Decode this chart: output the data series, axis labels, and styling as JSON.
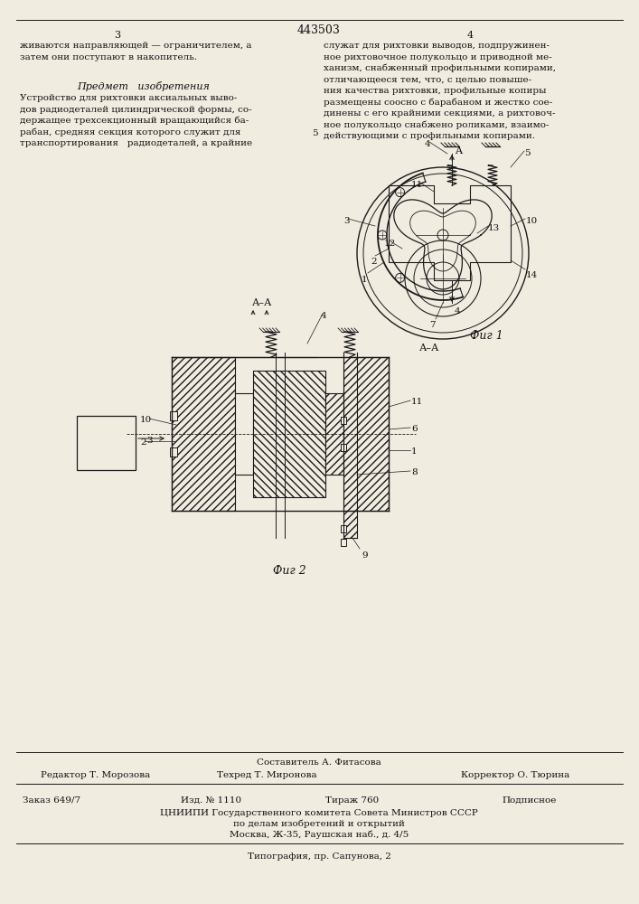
{
  "patent_number": "443503",
  "page_left": "3",
  "page_right": "4",
  "top_text_left": [
    "живаются направляющей — ограничителем, а",
    "затем они поступают в накопитель."
  ],
  "top_text_right": [
    "служат для рихтовки выводов, подпружинен-",
    "ное рихтовочное полукольцо и приводной ме-",
    "ханизм, снабженный профильными копирами,",
    "отличающееся тем, что, с целью повыше-",
    "ния качества рихтовки, профильные копиры",
    "размещены соосно с барабаном и жестко сое-",
    "динены с его крайними секциями, а рихтовоч-",
    "ное полукольцо снабжено роликами, взаимо-",
    "действующими с профильными копирами."
  ],
  "predmet_title": "Предмет   изобретения",
  "predmet_text": [
    "Устройство для рихтовки аксиальных выво-",
    "дов радиодеталей цилиндрической формы, со-",
    "держащее трехсекционный вращающийся ба-",
    "рабан, средняя секция которого служит для",
    "транспортирования   радиодеталей, а крайние"
  ],
  "fig1_caption": "Фиг 1",
  "fig2_caption": "Фиг 2",
  "bottom_author": "Составитель А. Фитасова",
  "editor_label": "Редактор Т. Морозова",
  "techred_label": "Техред Т. Миронова",
  "corrector_label": "Корректор О. Тюрина",
  "order_label": "Заказ 649/7",
  "izd_label": "Изд. № 1110",
  "tirazh_label": "Тираж 760",
  "podpisnoe_label": "Подписное",
  "cniipи_label": "ЦНИИПИ Государственного комитета Совета Министров СССР",
  "po_delam_label": "по делам изобретений и открытий",
  "address_label": "Москва, Ж-35, Раушская наб., д. 4/5",
  "tipografia_label": "Типография, пр. Сапунова, 2",
  "bg_color": "#f0ece0",
  "line_color": "#1a1a1a",
  "text_color": "#111111"
}
